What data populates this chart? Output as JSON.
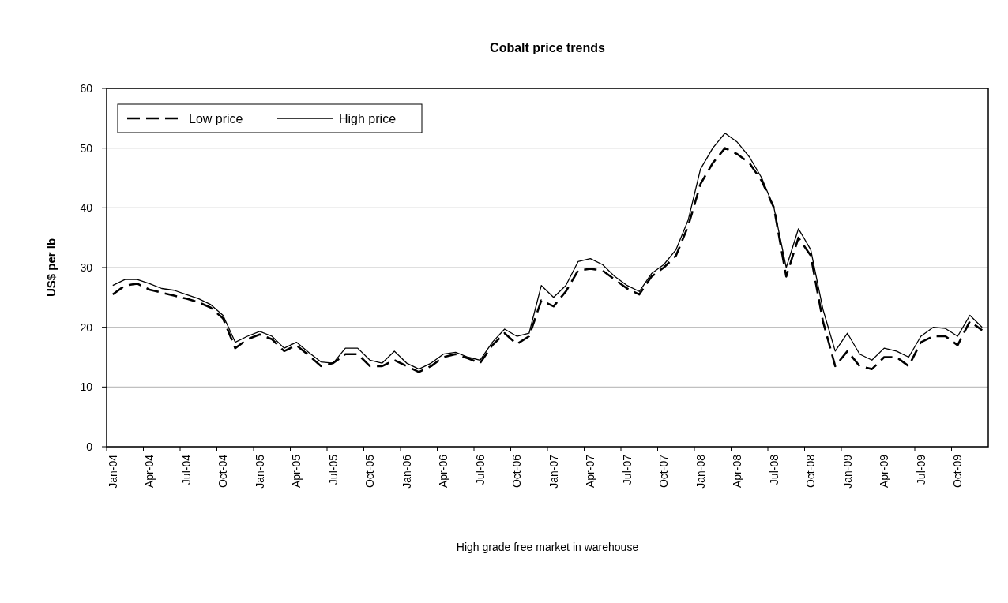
{
  "chart_data": {
    "type": "line",
    "title": "Cobalt price trends",
    "ylabel": "US$ per lb",
    "categories": [
      "Jan-04",
      null,
      null,
      "Apr-04",
      null,
      null,
      "Jul-04",
      null,
      null,
      "Oct-04",
      null,
      null,
      "Jan-05",
      null,
      null,
      "Apr-05",
      null,
      null,
      "Jul-05",
      null,
      null,
      "Oct-05",
      null,
      null,
      "Jan-06",
      null,
      null,
      "Apr-06",
      null,
      null,
      "Jul-06",
      null,
      null,
      "Oct-06",
      null,
      null,
      "Jan-07",
      null,
      null,
      "Apr-07",
      null,
      null,
      "Jul-07",
      null,
      null,
      "Oct-07",
      null,
      null,
      "Jan-08",
      null,
      null,
      "Apr-08",
      null,
      null,
      "Jul-08",
      null,
      null,
      "Oct-08",
      null,
      null,
      "Jan-09",
      null,
      null,
      "Apr-09",
      null,
      null,
      "Jul-09",
      null,
      null,
      "Oct-09",
      null,
      null
    ],
    "series": [
      {
        "name": "Low price",
        "color": "#000000",
        "line_style": "dashed",
        "values": [
          25.5,
          27,
          27.3,
          26.3,
          25.8,
          25.3,
          24.8,
          24.2,
          23.3,
          21.5,
          16.5,
          18,
          18.8,
          18,
          16,
          17,
          15.3,
          13.5,
          14,
          15.5,
          15.5,
          13.5,
          13.5,
          14.5,
          13.5,
          12.5,
          13.5,
          15,
          15.5,
          14.8,
          14,
          17,
          19,
          17.2,
          18.5,
          24.5,
          23.5,
          26,
          29.5,
          29.8,
          29.5,
          28,
          26.5,
          25.5,
          28.5,
          30,
          32,
          37,
          44,
          47.5,
          50,
          49,
          47.5,
          44.5,
          40,
          28.5,
          35,
          32,
          21,
          13.5,
          16,
          13.5,
          13,
          15,
          15,
          13.5,
          17.5,
          18.5,
          18.5,
          17,
          21,
          19.5
        ]
      },
      {
        "name": "High price",
        "color": "#000000",
        "line_style": "solid",
        "values": [
          27,
          28,
          28,
          27.3,
          26.5,
          26.2,
          25.5,
          24.8,
          23.8,
          22,
          17.5,
          18.5,
          19.3,
          18.5,
          16.5,
          17.5,
          15.8,
          14.2,
          14,
          16.5,
          16.5,
          14.5,
          14,
          16,
          14,
          13,
          14,
          15.5,
          15.8,
          15,
          14.5,
          17.5,
          19.7,
          18.5,
          19,
          27,
          25,
          27,
          31,
          31.5,
          30.5,
          28.5,
          27,
          26,
          29,
          30.5,
          33,
          38,
          46.5,
          50,
          52.5,
          51,
          48.5,
          45,
          40,
          30,
          36.5,
          33,
          23,
          16,
          19,
          15.5,
          14.5,
          16.5,
          16,
          15,
          18.5,
          20,
          19.8,
          18.5,
          22,
          20
        ]
      }
    ],
    "ylim": [
      0,
      60
    ],
    "yticks": [
      0,
      10,
      20,
      30,
      40,
      50,
      60
    ],
    "grid": "y",
    "legend": "top left",
    "annotations": [
      "High grade free market in warehouse"
    ]
  }
}
